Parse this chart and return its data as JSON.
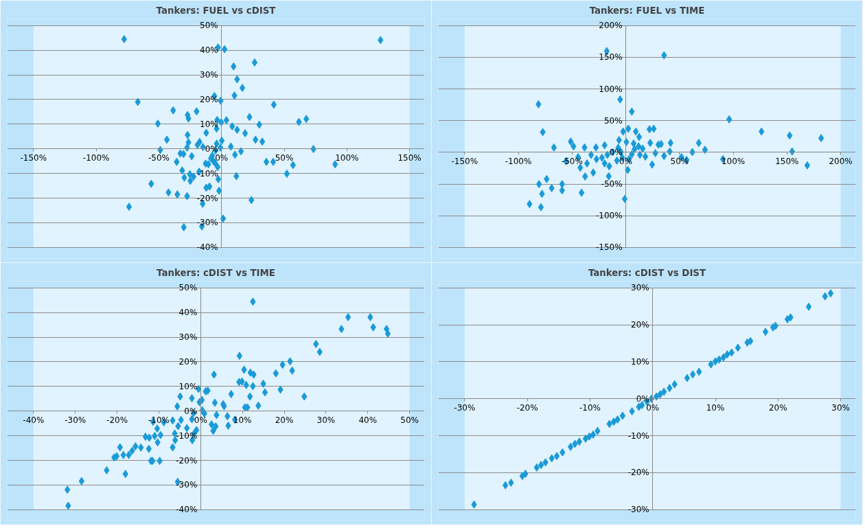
{
  "chart_data": [
    {
      "type": "scatter",
      "title": "Tankers: FUEL vs cDIST",
      "marker": "diamond",
      "grid": "y",
      "xlim": [
        -150,
        150
      ],
      "ylim": [
        -40,
        50
      ],
      "xticks": [
        {
          "value": -150,
          "label": "-150%"
        },
        {
          "value": -100,
          "label": "-100%"
        },
        {
          "value": -50,
          "label": "-50%"
        },
        {
          "value": 0,
          "label": "0%"
        },
        {
          "value": 50,
          "label": "50%"
        },
        {
          "value": 100,
          "label": "100%"
        },
        {
          "value": 150,
          "label": "150%"
        }
      ],
      "yticks": [
        {
          "value": -40,
          "label": "-40%"
        },
        {
          "value": -30,
          "label": "-30%"
        },
        {
          "value": -20,
          "label": "-20%"
        },
        {
          "value": -10,
          "label": "-10%"
        },
        {
          "value": 0,
          "label": "0%"
        },
        {
          "value": 10,
          "label": "10%"
        },
        {
          "value": 20,
          "label": "20%"
        },
        {
          "value": 30,
          "label": "30%"
        },
        {
          "value": 40,
          "label": "40%"
        },
        {
          "value": 50,
          "label": "50%"
        }
      ],
      "x": [
        -77.7,
        126.8,
        -2.8,
        2.4,
        9.6,
        26.4,
        12.4,
        16.6,
        -5.7,
        10.3,
        -0.7,
        -66.8,
        41.7,
        -38.6,
        -19.9,
        -27.1,
        -26.4,
        22.3,
        67.6,
        61.7,
        -50.8,
        -3.5,
        -0.2,
        3.9,
        30.1,
        -3.9,
        8.5,
        12.4,
        18.8,
        -12.2,
        -27.1,
        -43.6,
        27.1,
        32.5,
        0.2,
        -26.4,
        -17.5,
        -19.2,
        -14.8,
        -3.9,
        7.4,
        -27.5,
        -48.9,
        73.3,
        -0.9,
        -4.8,
        15.5,
        -32.9,
        -30.3,
        10.7,
        -23.8,
        -7.4,
        -35.8,
        -12.7,
        -6.3,
        35.8,
        41.2,
        57.0,
        90.6,
        -3.1,
        -31.4,
        -17.9,
        -25.3,
        52.1,
        -29.7,
        -22.3,
        -24.9,
        11.8,
        -2.6,
        -56.1,
        -12.2,
        -9.6,
        -2.0,
        -42.3,
        -35.3,
        -27.5,
        -15.1,
        23.8,
        -73.8,
        1.3,
        -30.1,
        -15.7,
        -8.5,
        -5.2,
        -10.5
      ],
      "series": [
        {
          "color": "#1a9bd7",
          "values": [
            44.5,
            44.1,
            41.1,
            40.4,
            33.4,
            35.0,
            28.2,
            24.7,
            21.4,
            21.6,
            19.5,
            19.0,
            17.9,
            15.6,
            15.2,
            13.7,
            12.3,
            12.9,
            12.1,
            10.9,
            10.2,
            11.7,
            10.8,
            11.6,
            9.8,
            8.2,
            9.1,
            7.7,
            6.3,
            6.5,
            5.6,
            3.7,
            3.7,
            2.9,
            3.3,
            2.6,
            2.8,
            1.6,
            0.7,
            2.1,
            0.9,
            0.5,
            -0.5,
            -0.1,
            0.5,
            -0.7,
            -1.0,
            -1.9,
            -2.1,
            -2.4,
            -3.0,
            -2.8,
            -5.3,
            -6.0,
            -5.1,
            -5.3,
            -5.3,
            -6.6,
            -6.3,
            -7.4,
            -8.8,
            -9.3,
            -10.3,
            -10.1,
            -11.7,
            -11.3,
            -13.0,
            -11.1,
            -12.3,
            -14.2,
            -15.8,
            -15.3,
            -17.0,
            -17.7,
            -18.5,
            -19.2,
            -22.3,
            -20.8,
            -23.5,
            -28.3,
            -31.8,
            -31.5,
            -3.9,
            -5.7,
            -6.3
          ]
        }
      ]
    },
    {
      "type": "scatter",
      "title": "Tankers: FUEL vs TIME",
      "marker": "diamond",
      "grid": "y",
      "xlim": [
        -150,
        200
      ],
      "ylim": [
        -150,
        200
      ],
      "xticks": [
        {
          "value": -150,
          "label": "-150%"
        },
        {
          "value": -100,
          "label": "-100%"
        },
        {
          "value": -50,
          "label": "-50%"
        },
        {
          "value": 0,
          "label": "0%"
        },
        {
          "value": 50,
          "label": "50%"
        },
        {
          "value": 100,
          "label": "100%"
        },
        {
          "value": 150,
          "label": "150%"
        },
        {
          "value": 200,
          "label": "200%"
        }
      ],
      "yticks": [
        {
          "value": -150,
          "label": "-150%"
        },
        {
          "value": -100,
          "label": "-100%"
        },
        {
          "value": -50,
          "label": "-50%"
        },
        {
          "value": 0,
          "label": "0%"
        },
        {
          "value": 50,
          "label": "50%"
        },
        {
          "value": 100,
          "label": "100%"
        },
        {
          "value": 150,
          "label": "150%"
        },
        {
          "value": 200,
          "label": "200%"
        }
      ],
      "x": [
        -17.7,
        35.6,
        -81.3,
        -5.3,
        5.6,
        96.2,
        -77.3,
        126.3,
        152.5,
        181.8,
        2.3,
        -2.5,
        9.3,
        22.0,
        26.0,
        12.4,
        -51.3,
        -48.7,
        -66.9,
        -38.4,
        22.7,
        30.3,
        32.8,
        41.7,
        67.9,
        73.7,
        -6.3,
        -19.7,
        -27.8,
        0.5,
        7.3,
        11.9,
        15.7,
        8.1,
        40.9,
        27.5,
        61.9,
        154.8,
        51.8,
        56.6,
        90.4,
        168.9,
        35.6,
        18.2,
        13.1,
        24.5,
        1.8,
        -55.6,
        -44.4,
        -42.4,
        -36.1,
        -30.3,
        -37.9,
        -15.9,
        -15.4,
        -8.3,
        -22.2,
        -32.3,
        -12.1,
        -4.5,
        -7.1,
        -27.3,
        -17.2,
        -73.7,
        -80.8,
        -59.3,
        -69.0,
        -59.3,
        -78.0,
        -41.2,
        -89.6,
        -79.0,
        -1.0,
        3.0,
        -3.3,
        5.6,
        -19.7
      ],
      "series": [
        {
          "color": "#1a9bd7",
          "values": [
            159.7,
            153.0,
            75.8,
            83.4,
            64.2,
            52.0,
            31.9,
            32.8,
            26.5,
            22.4,
            37.2,
            32.8,
            32.8,
            36.3,
            37.2,
            24.2,
            17.0,
            9.4,
            7.6,
            7.6,
            14.8,
            12.1,
            13.0,
            14.8,
            14.8,
            4.0,
            19.3,
            11.2,
            7.6,
            16.2,
            13.9,
            9.4,
            5.8,
            4.9,
            1.3,
            -1.3,
            0.4,
            1.3,
            -7.6,
            -12.1,
            -10.8,
            -20.6,
            -5.8,
            -6.7,
            -4.0,
            -19.3,
            -27.8,
            -13.9,
            -7.6,
            -24.2,
            -17.5,
            -31.9,
            -38.1,
            -37.7,
            -22.0,
            -13.0,
            -8.5,
            -4.0,
            0.4,
            0.4,
            7.2,
            -10.8,
            -4.0,
            -42.2,
            -50.2,
            -50.2,
            -56.5,
            -60.1,
            -65.5,
            -63.7,
            -81.7,
            -86.6,
            -73.6,
            -10.8,
            -8.5,
            -3.1,
            -17.5
          ]
        }
      ]
    },
    {
      "type": "scatter",
      "title": "Tankers: cDIST vs TIME",
      "marker": "diamond",
      "grid": "y",
      "xlim": [
        -40,
        50
      ],
      "ylim": [
        -40,
        50
      ],
      "xticks": [
        {
          "value": -40,
          "label": "-40%"
        },
        {
          "value": -30,
          "label": "-30%"
        },
        {
          "value": -20,
          "label": "-20%"
        },
        {
          "value": -10,
          "label": "-10%"
        },
        {
          "value": 0,
          "label": "0%"
        },
        {
          "value": 10,
          "label": "10%"
        },
        {
          "value": 20,
          "label": "20%"
        },
        {
          "value": 30,
          "label": "30%"
        },
        {
          "value": 40,
          "label": "40%"
        },
        {
          "value": 50,
          "label": "50%"
        }
      ],
      "yticks": [
        {
          "value": -40,
          "label": "-40%"
        },
        {
          "value": -30,
          "label": "-30%"
        },
        {
          "value": -20,
          "label": "-20%"
        },
        {
          "value": -10,
          "label": "-10%"
        },
        {
          "value": 0,
          "label": "0%"
        },
        {
          "value": 10,
          "label": "10%"
        },
        {
          "value": 20,
          "label": "20%"
        },
        {
          "value": 30,
          "label": "30%"
        },
        {
          "value": 40,
          "label": "40%"
        },
        {
          "value": 50,
          "label": "50%"
        }
      ],
      "x": [
        12.5,
        35.3,
        40.6,
        33.7,
        41.3,
        44.5,
        44.8,
        27.6,
        28.5,
        9.3,
        21.4,
        19.6,
        21.9,
        10.4,
        11.9,
        12.7,
        18.0,
        3.2,
        9.2,
        9.9,
        10.9,
        12.5,
        15.0,
        15.4,
        19.1,
        24.8,
        7.3,
        11.8,
        13.8,
        10.6,
        11.2,
        -0.5,
        1.2,
        1.7,
        -4.9,
        -2.1,
        0.3,
        -0.3,
        3.4,
        5.4,
        5.6,
        -5.6,
        -1.7,
        0.4,
        0.9,
        3.8,
        6.4,
        8.2,
        -6.7,
        -4.7,
        -8.8,
        -11.4,
        -2.1,
        -3.3,
        2.6,
        3.6,
        6.6,
        3.0,
        -5.4,
        -1.0,
        -10.4,
        -1.6,
        -6.2,
        -2.0,
        -9.6,
        -13.2,
        -12.3,
        -11.0,
        -6.1,
        -10.3,
        -6.7,
        -12.4,
        -19.3,
        -14.3,
        -15.6,
        -16.4,
        -18.5,
        -17.2,
        -20.7,
        -20.1,
        -11.9,
        -11.5,
        -9.8,
        -18.0,
        -22.5,
        -28.5,
        -5.5,
        -31.9,
        -31.7
      ],
      "series": [
        {
          "color": "#1a9bd7",
          "values": [
            44.4,
            38.1,
            38.1,
            33.3,
            34.0,
            33.3,
            31.4,
            27.2,
            24.0,
            22.4,
            20.2,
            18.8,
            16.4,
            16.8,
            15.6,
            14.8,
            15.3,
            14.8,
            11.8,
            12.0,
            10.6,
            10.1,
            11.1,
            7.6,
            8.7,
            5.9,
            6.9,
            5.9,
            2.2,
            1.5,
            1.5,
            9.0,
            8.0,
            8.3,
            5.9,
            5.2,
            4.5,
            3.6,
            3.4,
            2.8,
            2.0,
            1.9,
            -0.8,
            0.3,
            -1.0,
            -1.6,
            -2.1,
            -3.5,
            -3.8,
            -3.6,
            -4.5,
            -4.3,
            -3.3,
            -6.9,
            -5.4,
            -6.2,
            -5.9,
            -8.0,
            -6.1,
            -7.7,
            -7.1,
            -9.2,
            -9.1,
            -11.8,
            -9.7,
            -10.4,
            -10.8,
            -10.1,
            -11.8,
            -12.7,
            -14.7,
            -15.3,
            -14.7,
            -14.8,
            -14.3,
            -16.1,
            -17.8,
            -17.8,
            -18.8,
            -18.3,
            -20.2,
            -20.2,
            -20.2,
            -25.5,
            -24.0,
            -28.4,
            -28.7,
            -31.9,
            -38.4
          ]
        }
      ]
    },
    {
      "type": "scatter",
      "title": "Tankers: cDIST vs DIST",
      "marker": "diamond",
      "grid": "y",
      "xlim": [
        -30,
        30
      ],
      "ylim": [
        -30,
        30
      ],
      "xticks": [
        {
          "value": -30,
          "label": "-30%"
        },
        {
          "value": -20,
          "label": "-20%"
        },
        {
          "value": -10,
          "label": "-10%"
        },
        {
          "value": 0,
          "label": "0%"
        },
        {
          "value": 10,
          "label": "10%"
        },
        {
          "value": 20,
          "label": "20%"
        },
        {
          "value": 30,
          "label": "30%"
        }
      ],
      "yticks": [
        {
          "value": -30,
          "label": "-30%"
        },
        {
          "value": -20,
          "label": "-20%"
        },
        {
          "value": -10,
          "label": "-10%"
        },
        {
          "value": 0,
          "label": "0%"
        },
        {
          "value": 10,
          "label": "10%"
        },
        {
          "value": 20,
          "label": "20%"
        },
        {
          "value": 30,
          "label": "30%"
        }
      ],
      "x": [
        -28.5,
        -23.5,
        -22.6,
        -20.8,
        -20.3,
        -18.5,
        -17.8,
        -17.1,
        -16.1,
        -15.3,
        -14.4,
        -13.1,
        -12.4,
        -11.7,
        -10.7,
        -10.1,
        -9.5,
        -8.8,
        -6.9,
        -6.2,
        -5.6,
        -4.8,
        -3.3,
        -2.2,
        -1.7,
        -0.9,
        -0.2,
        0.6,
        1.2,
        1.8,
        2.7,
        3.5,
        5.5,
        6.4,
        7.4,
        9.3,
        10.0,
        10.6,
        11.3,
        11.9,
        12.6,
        13.6,
        15.1,
        15.6,
        18.0,
        19.2,
        19.6,
        21.5,
        22.0,
        24.9,
        27.5,
        28.4
      ],
      "series": [
        {
          "color": "#1a9bd7",
          "values": [
            -28.6,
            -23.4,
            -22.7,
            -20.9,
            -20.3,
            -18.6,
            -17.9,
            -17.2,
            -16.1,
            -15.5,
            -14.5,
            -13.0,
            -12.2,
            -11.6,
            -10.8,
            -10.2,
            -9.7,
            -8.7,
            -6.8,
            -6.2,
            -5.6,
            -4.6,
            -3.4,
            -2.2,
            -1.7,
            -0.8,
            0.0,
            0.6,
            1.2,
            1.9,
            2.9,
            3.9,
            5.6,
            6.6,
            7.3,
            9.3,
            10.1,
            10.6,
            11.2,
            12.0,
            12.5,
            13.8,
            15.2,
            15.6,
            18.1,
            19.3,
            19.7,
            21.5,
            22.0,
            24.9,
            27.7,
            28.5
          ]
        }
      ]
    }
  ]
}
